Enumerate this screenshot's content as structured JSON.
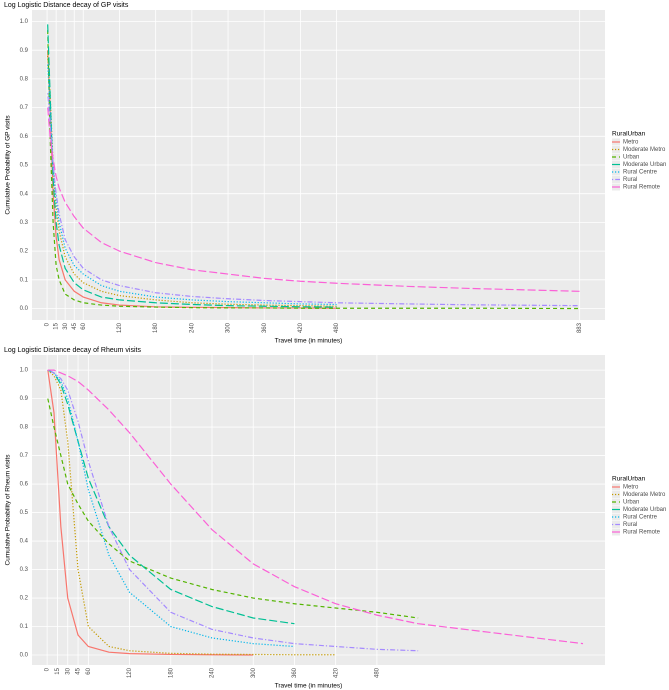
{
  "chart_data": [
    {
      "type": "line",
      "title": "Log Logistic Distance decay of GP visits",
      "x_label": "Travel time (in minutes)",
      "y_label": "Cumulative Probability of GP visits",
      "legend_title": "RuralUrban",
      "legend": "right",
      "grid": true,
      "xlim": [
        -25,
        925
      ],
      "ylim": [
        -0.04,
        1.04
      ],
      "xticks": [
        0,
        15,
        30,
        45,
        60,
        120,
        180,
        240,
        300,
        360,
        420,
        480,
        883
      ],
      "yticks": [
        {
          "value": 0,
          "label": "0.0"
        },
        0.1,
        0.2,
        0.3,
        0.4,
        0.5,
        0.6,
        0.7,
        0.8,
        0.9,
        {
          "value": 1,
          "label": "1.0"
        }
      ],
      "x": [
        1,
        5,
        10,
        15,
        20,
        30,
        45,
        60,
        90,
        120,
        180,
        240,
        300,
        360,
        420,
        480,
        600,
        700,
        883
      ],
      "series": [
        {
          "name": "Metro",
          "color": "#F8766D",
          "dash": "solid",
          "values": [
            0.9,
            0.7,
            0.4,
            0.25,
            0.17,
            0.1,
            0.06,
            0.04,
            0.02,
            0.012,
            0.006,
            0.004,
            0.003,
            0.002,
            0.002,
            0.001,
            null,
            null,
            null
          ]
        },
        {
          "name": "Moderate Metro",
          "color": "#C49A00",
          "dash": "dotted",
          "values": [
            0.88,
            0.75,
            0.5,
            0.35,
            0.27,
            0.18,
            0.12,
            0.09,
            0.06,
            0.045,
            0.03,
            0.02,
            0.015,
            0.012,
            0.01,
            0.008,
            null,
            null,
            null
          ]
        },
        {
          "name": "Urban",
          "color": "#53B400",
          "dash": "dashed",
          "values": [
            0.97,
            0.6,
            0.3,
            0.15,
            0.1,
            0.05,
            0.03,
            0.02,
            0.012,
            0.008,
            0.005,
            0.003,
            0.002,
            0.002,
            0.001,
            0.001,
            0.001,
            0.001,
            0
          ]
        },
        {
          "name": "Moderate Urban",
          "color": "#00C094",
          "dash": "longdash",
          "values": [
            0.99,
            0.75,
            0.45,
            0.3,
            0.22,
            0.14,
            0.09,
            0.065,
            0.04,
            0.03,
            0.02,
            0.014,
            0.01,
            0.008,
            0.006,
            0.005,
            null,
            null,
            null
          ]
        },
        {
          "name": "Rural Centre",
          "color": "#00B6EB",
          "dash": "dotted",
          "values": [
            0.85,
            0.7,
            0.5,
            0.38,
            0.3,
            0.21,
            0.15,
            0.12,
            0.08,
            0.06,
            0.04,
            0.03,
            0.024,
            0.02,
            0.016,
            0.014,
            null,
            null,
            null
          ]
        },
        {
          "name": "Rural",
          "color": "#A58AFF",
          "dash": "dotdash",
          "values": [
            0.75,
            0.65,
            0.5,
            0.4,
            0.33,
            0.24,
            0.18,
            0.14,
            0.1,
            0.08,
            0.055,
            0.042,
            0.034,
            0.028,
            0.024,
            0.02,
            0.016,
            0.013,
            0.01
          ]
        },
        {
          "name": "Rural Remote",
          "color": "#FB61D7",
          "dash": "longdash",
          "values": [
            0.7,
            0.6,
            0.52,
            0.46,
            0.42,
            0.37,
            0.32,
            0.28,
            0.23,
            0.2,
            0.16,
            0.135,
            0.12,
            0.105,
            0.095,
            0.088,
            0.077,
            0.07,
            0.06
          ]
        }
      ]
    },
    {
      "type": "line",
      "title": "Log Logistic Distance decay of Rheum visits",
      "x_label": "Travel time (in minutes)",
      "y_label": "Cumulative Probability of Rheum visits",
      "legend_title": "RuralUrban",
      "legend": "right",
      "grid": true,
      "xlim": [
        -22,
        812
      ],
      "ylim": [
        -0.035,
        1.053
      ],
      "xticks": [
        0,
        15,
        30,
        45,
        60,
        120,
        180,
        240,
        300,
        360,
        420,
        480
      ],
      "yticks": [
        {
          "value": 0,
          "label": "0.0"
        },
        0.1,
        0.2,
        0.3,
        0.4,
        0.5,
        0.6,
        0.7,
        0.8,
        0.9,
        {
          "value": 1,
          "label": "1.0"
        }
      ],
      "x": [
        1,
        10,
        20,
        30,
        45,
        60,
        90,
        120,
        180,
        240,
        300,
        360,
        420,
        480,
        540,
        780
      ],
      "series": [
        {
          "name": "Metro",
          "color": "#F8766D",
          "dash": "solid",
          "values": [
            1,
            0.85,
            0.45,
            0.2,
            0.07,
            0.03,
            0.01,
            0.005,
            0.002,
            0.001,
            0,
            null,
            null,
            null,
            null,
            null
          ]
        },
        {
          "name": "Moderate Metro",
          "color": "#C49A00",
          "dash": "dotted",
          "values": [
            1,
            0.98,
            0.93,
            0.75,
            0.3,
            0.1,
            0.03,
            0.015,
            0.006,
            0.003,
            0.002,
            0.001,
            0.001,
            null,
            null,
            null
          ]
        },
        {
          "name": "Urban",
          "color": "#53B400",
          "dash": "dashed",
          "values": [
            0.9,
            0.8,
            0.7,
            0.6,
            0.53,
            0.47,
            0.39,
            0.33,
            0.27,
            0.23,
            0.2,
            0.18,
            0.165,
            0.15,
            0.13,
            null
          ]
        },
        {
          "name": "Moderate Urban",
          "color": "#00C094",
          "dash": "longdash",
          "values": [
            1,
            0.99,
            0.95,
            0.88,
            0.75,
            0.62,
            0.45,
            0.35,
            0.23,
            0.17,
            0.13,
            0.11,
            null,
            null,
            null,
            null
          ]
        },
        {
          "name": "Rural Centre",
          "color": "#00B6EB",
          "dash": "dotted",
          "values": [
            1,
            0.99,
            0.96,
            0.9,
            0.75,
            0.58,
            0.35,
            0.22,
            0.1,
            0.06,
            0.04,
            0.03,
            null,
            null,
            null,
            null
          ]
        },
        {
          "name": "Rural",
          "color": "#A58AFF",
          "dash": "dotdash",
          "values": [
            1,
            0.99,
            0.97,
            0.93,
            0.82,
            0.68,
            0.45,
            0.3,
            0.15,
            0.09,
            0.06,
            0.04,
            0.03,
            0.02,
            0.015,
            null
          ]
        },
        {
          "name": "Rural Remote",
          "color": "#FB61D7",
          "dash": "longdash",
          "values": [
            1,
            1,
            0.99,
            0.98,
            0.96,
            0.93,
            0.86,
            0.78,
            0.6,
            0.44,
            0.32,
            0.24,
            0.18,
            0.14,
            0.11,
            0.04
          ]
        }
      ]
    }
  ]
}
